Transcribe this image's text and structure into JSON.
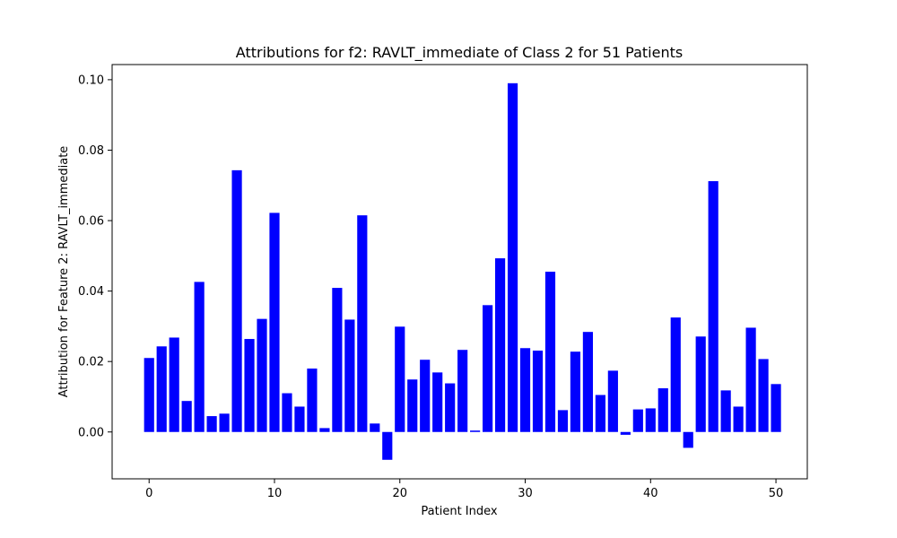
{
  "chart_data": {
    "type": "bar",
    "title": "Attributions for f2: RAVLT_immediate of Class 2 for 51 Patients",
    "xlabel": "Patient Index",
    "ylabel": "Attribution for Feature 2: RAVLT_immediate",
    "x": [
      0,
      1,
      2,
      3,
      4,
      5,
      6,
      7,
      8,
      9,
      10,
      11,
      12,
      13,
      14,
      15,
      16,
      17,
      18,
      19,
      20,
      21,
      22,
      23,
      24,
      25,
      26,
      27,
      28,
      29,
      30,
      31,
      32,
      33,
      34,
      35,
      36,
      37,
      38,
      39,
      40,
      41,
      42,
      43,
      44,
      45,
      46,
      47,
      48,
      49,
      50
    ],
    "values": [
      0.021,
      0.0243,
      0.0268,
      0.0088,
      0.0426,
      0.0045,
      0.0052,
      0.0743,
      0.0264,
      0.0321,
      0.0622,
      0.011,
      0.0072,
      0.018,
      0.0011,
      0.0409,
      0.0319,
      0.0615,
      0.0024,
      -0.0079,
      0.0299,
      0.0149,
      0.0205,
      0.0169,
      0.0138,
      0.0233,
      0.0004,
      0.036,
      0.0493,
      0.099,
      0.0238,
      0.0231,
      0.0455,
      0.0062,
      0.0228,
      0.0284,
      0.0105,
      0.0174,
      -0.0008,
      0.0064,
      0.0067,
      0.0124,
      0.0325,
      -0.0045,
      0.0271,
      0.0712,
      0.0118,
      0.0072,
      0.0296,
      0.0207,
      0.0136
    ],
    "xticks": [
      0,
      10,
      20,
      30,
      40,
      50
    ],
    "yticks": [
      0.0,
      0.02,
      0.04,
      0.06,
      0.08,
      0.1
    ],
    "xtick_labels": [
      "0",
      "10",
      "20",
      "30",
      "40",
      "50"
    ],
    "ytick_labels": [
      "0.00",
      "0.02",
      "0.04",
      "0.06",
      "0.08",
      "0.10"
    ],
    "xlim": [
      -2.95,
      52.5
    ],
    "ylim": [
      -0.0133,
      0.1043
    ],
    "bar_color": "#0000ff",
    "grid": false,
    "legend": "none"
  }
}
